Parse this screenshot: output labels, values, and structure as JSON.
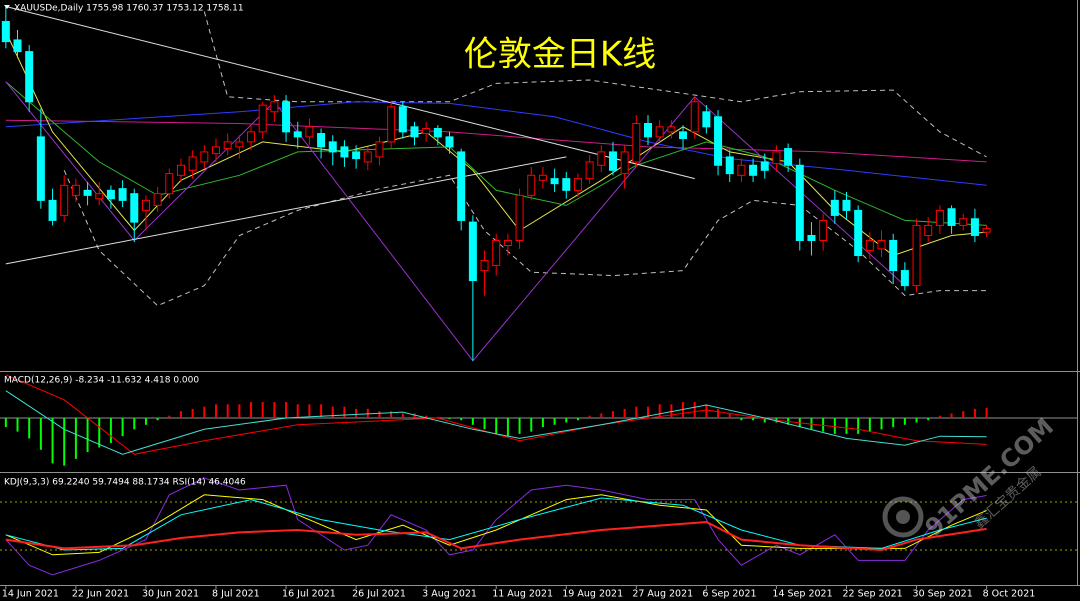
{
  "chart_data": [
    {
      "type": "candlestick",
      "title": "伦敦金日K线",
      "info": "XAUUSDe,Daily  1755.98 1760.37 1753.12 1758.11",
      "up_color": "#ff0000",
      "down_color": "#00ffff",
      "ylim": [
        1673.5,
        1893.7
      ],
      "xlim": [
        -0.5,
        92
      ],
      "xticks": [
        {
          "value": 0,
          "label": "14 Jun 2021"
        },
        {
          "value": 6,
          "label": "22 Jun 2021"
        },
        {
          "value": 12,
          "label": "30 Jun 2021"
        },
        {
          "value": 18,
          "label": "8 Jul 2021"
        },
        {
          "value": 24,
          "label": "16 Jul 2021"
        },
        {
          "value": 30,
          "label": "26 Jul 2021"
        },
        {
          "value": 36,
          "label": "3 Aug 2021"
        },
        {
          "value": 42,
          "label": "11 Aug 2021"
        },
        {
          "value": 48,
          "label": "19 Aug 2021"
        },
        {
          "value": 54,
          "label": "27 Aug 2021"
        },
        {
          "value": 60,
          "label": "6 Sep 2021"
        },
        {
          "value": 66,
          "label": "14 Sep 2021"
        },
        {
          "value": 72,
          "label": "22 Sep 2021"
        },
        {
          "value": 78,
          "label": "30 Sep 2021"
        },
        {
          "value": 84,
          "label": "8 Oct 2021"
        }
      ],
      "candles": [
        [
          1882,
          1891,
          1866,
          1870
        ],
        [
          1871,
          1877,
          1860,
          1864
        ],
        [
          1864,
          1868,
          1828,
          1834
        ],
        [
          1813,
          1830,
          1770,
          1775
        ],
        [
          1775,
          1782,
          1760,
          1763
        ],
        [
          1766,
          1790,
          1762,
          1784
        ],
        [
          1778,
          1788,
          1774,
          1784
        ],
        [
          1781,
          1786,
          1772,
          1778
        ],
        [
          1776,
          1786,
          1772,
          1779
        ],
        [
          1781,
          1784,
          1770,
          1776
        ],
        [
          1782,
          1787,
          1771,
          1775
        ],
        [
          1779,
          1782,
          1750,
          1762
        ],
        [
          1769,
          1778,
          1757,
          1775
        ],
        [
          1772,
          1783,
          1768,
          1779
        ],
        [
          1779,
          1794,
          1776,
          1791
        ],
        [
          1790,
          1800,
          1786,
          1796
        ],
        [
          1793,
          1805,
          1788,
          1801
        ],
        [
          1798,
          1808,
          1794,
          1804
        ],
        [
          1803,
          1812,
          1798,
          1807
        ],
        [
          1806,
          1815,
          1802,
          1810
        ],
        [
          1807,
          1814,
          1800,
          1810
        ],
        [
          1810,
          1820,
          1805,
          1816
        ],
        [
          1816,
          1834,
          1812,
          1832
        ],
        [
          1828,
          1838,
          1822,
          1834
        ],
        [
          1834,
          1838,
          1810,
          1816
        ],
        [
          1816,
          1822,
          1806,
          1813
        ],
        [
          1813,
          1824,
          1808,
          1819
        ],
        [
          1815,
          1818,
          1800,
          1807
        ],
        [
          1810,
          1814,
          1796,
          1804
        ],
        [
          1807,
          1811,
          1795,
          1801
        ],
        [
          1804,
          1808,
          1794,
          1800
        ],
        [
          1798,
          1807,
          1793,
          1804
        ],
        [
          1801,
          1813,
          1796,
          1810
        ],
        [
          1810,
          1834,
          1806,
          1831
        ],
        [
          1831,
          1834,
          1812,
          1816
        ],
        [
          1819,
          1822,
          1808,
          1813
        ],
        [
          1815,
          1822,
          1810,
          1818
        ],
        [
          1818,
          1820,
          1808,
          1813
        ],
        [
          1813,
          1816,
          1803,
          1807
        ],
        [
          1804,
          1806,
          1757,
          1763
        ],
        [
          1762,
          1766,
          1679,
          1727
        ],
        [
          1733,
          1745,
          1718,
          1739
        ],
        [
          1736,
          1755,
          1730,
          1751
        ],
        [
          1748,
          1755,
          1742,
          1751
        ],
        [
          1751,
          1782,
          1746,
          1778
        ],
        [
          1778,
          1795,
          1775,
          1790
        ],
        [
          1787,
          1795,
          1782,
          1790
        ],
        [
          1788,
          1794,
          1780,
          1785
        ],
        [
          1788,
          1792,
          1776,
          1781
        ],
        [
          1781,
          1791,
          1777,
          1788
        ],
        [
          1788,
          1802,
          1785,
          1798
        ],
        [
          1796,
          1808,
          1792,
          1804
        ],
        [
          1804,
          1810,
          1790,
          1793
        ],
        [
          1791,
          1808,
          1782,
          1804
        ],
        [
          1798,
          1826,
          1795,
          1821
        ],
        [
          1821,
          1826,
          1808,
          1813
        ],
        [
          1813,
          1823,
          1810,
          1819
        ],
        [
          1816,
          1823,
          1812,
          1819
        ],
        [
          1816,
          1820,
          1806,
          1812
        ],
        [
          1816,
          1837,
          1812,
          1834
        ],
        [
          1828,
          1832,
          1815,
          1819
        ],
        [
          1825,
          1829,
          1790,
          1796
        ],
        [
          1801,
          1805,
          1786,
          1791
        ],
        [
          1790,
          1800,
          1786,
          1796
        ],
        [
          1796,
          1800,
          1786,
          1790
        ],
        [
          1798,
          1803,
          1788,
          1793
        ],
        [
          1797,
          1808,
          1792,
          1804
        ],
        [
          1806,
          1809,
          1792,
          1796
        ],
        [
          1796,
          1800,
          1745,
          1751
        ],
        [
          1754,
          1762,
          1742,
          1751
        ],
        [
          1751,
          1767,
          1745,
          1763
        ],
        [
          1775,
          1781,
          1761,
          1766
        ],
        [
          1775,
          1780,
          1764,
          1769
        ],
        [
          1769,
          1772,
          1738,
          1742
        ],
        [
          1745,
          1756,
          1740,
          1751
        ],
        [
          1746,
          1757,
          1741,
          1751
        ],
        [
          1751,
          1755,
          1725,
          1733
        ],
        [
          1733,
          1738,
          1721,
          1724
        ],
        [
          1724,
          1764,
          1720,
          1760
        ],
        [
          1754,
          1765,
          1750,
          1760
        ],
        [
          1760,
          1772,
          1755,
          1769
        ],
        [
          1770,
          1772,
          1755,
          1760
        ],
        [
          1760,
          1767,
          1757,
          1764
        ],
        [
          1764,
          1770,
          1750,
          1754
        ],
        [
          1755.98,
          1760.37,
          1753.12,
          1758.11
        ]
      ],
      "series": [
        {
          "color": "#c0c0c0",
          "dash": true,
          "x": [
            17,
            19,
            25,
            38,
            42,
            50,
            58,
            63,
            68,
            76,
            80,
            84
          ],
          "values": [
            1888,
            1837,
            1834,
            1834,
            1845,
            1847,
            1839,
            1834,
            1840,
            1841,
            1816,
            1801
          ]
        },
        {
          "color": "#c0c0c0",
          "dash": true,
          "x": [
            5,
            8,
            13,
            17,
            20,
            25,
            32,
            38,
            41,
            45,
            52,
            58,
            61,
            64,
            68,
            73,
            77,
            80,
            84
          ],
          "values": [
            1793,
            1745,
            1712,
            1724,
            1754,
            1769,
            1782,
            1790,
            1757,
            1732,
            1730,
            1733,
            1763,
            1775,
            1772,
            1745,
            1718,
            1721,
            1721
          ]
        },
        {
          "color": "#2f3cff",
          "x": [
            0,
            20,
            30,
            38,
            47,
            55,
            62,
            72,
            84
          ],
          "values": [
            1819,
            1828,
            1834,
            1833,
            1825,
            1810,
            1800,
            1793,
            1784
          ]
        },
        {
          "color": "#d01a8a",
          "x": [
            0,
            20,
            38,
            55,
            70,
            84
          ],
          "values": [
            1823,
            1821,
            1816,
            1807,
            1804,
            1798
          ]
        },
        {
          "color": "#e6e64a",
          "x": [
            0,
            4,
            11,
            15,
            22,
            29,
            36,
            40,
            44,
            51,
            58,
            62,
            67,
            71,
            76,
            81,
            84
          ],
          "values": [
            1876,
            1816,
            1757,
            1787,
            1810,
            1804,
            1816,
            1793,
            1757,
            1787,
            1819,
            1804,
            1798,
            1769,
            1742,
            1754,
            1756
          ]
        },
        {
          "color": "#2eb82e",
          "x": [
            0,
            8,
            13,
            20,
            25,
            38,
            42,
            48,
            54,
            60,
            65,
            71,
            77,
            84
          ],
          "values": [
            1846,
            1798,
            1778,
            1790,
            1804,
            1807,
            1781,
            1772,
            1796,
            1810,
            1801,
            1781,
            1763,
            1760
          ]
        },
        {
          "color": "#9932cc",
          "x": [
            0,
            11,
            23,
            40,
            59,
            77
          ],
          "values": [
            1846,
            1751,
            1834,
            1679,
            1837,
            1724
          ]
        },
        {
          "color": "#e0e0e0",
          "x": [
            0,
            48
          ],
          "values": [
            1737,
            1801
          ]
        },
        {
          "color": "#e0e0e0",
          "x": [
            0,
            59
          ],
          "values": [
            1891,
            1788
          ]
        }
      ]
    },
    {
      "type": "macd",
      "label": "MACD(12,26,9) -8.234 -11.632 4.418 0.000",
      "ylim": [
        -22.9,
        19.8
      ],
      "up_color": "#ff0000",
      "down_color": "#00ff00",
      "histogram": [
        -4,
        -6,
        -9,
        -14,
        -20,
        -21,
        -18,
        -15,
        -13,
        -11,
        -8,
        -5,
        -3,
        -1,
        1,
        3,
        4,
        5,
        6,
        6,
        6,
        7,
        7,
        7,
        7,
        6,
        6,
        6,
        5,
        5,
        4,
        4,
        3,
        3,
        2,
        2,
        1,
        0.5,
        -0.5,
        -1,
        -3,
        -5,
        -7,
        -8,
        -7,
        -6,
        -4,
        -3,
        -2,
        -1,
        1,
        2,
        3,
        4,
        5,
        5,
        6,
        6,
        7,
        7,
        6,
        4,
        2,
        -1,
        -1,
        -2,
        -2,
        -3,
        -4,
        -5,
        -6,
        -7,
        -7,
        -7,
        -6,
        -5,
        -4,
        -3,
        -2,
        -1,
        1,
        2,
        3,
        4,
        4.418
      ],
      "series": [
        {
          "color": "#ff0000",
          "x": [
            0,
            5,
            11,
            17,
            25,
            37,
            44,
            51,
            60,
            66,
            73,
            78,
            84
          ],
          "values": [
            19,
            8,
            -16,
            -10,
            -3,
            0,
            -10,
            -3,
            3.5,
            -1,
            -5,
            -10,
            -11.632
          ]
        },
        {
          "color": "#40e0d0",
          "x": [
            0,
            5,
            10,
            17,
            24,
            34,
            40,
            44,
            51,
            60,
            65,
            72,
            77,
            80,
            84
          ],
          "values": [
            12,
            -5,
            -16,
            -5,
            0,
            2.6,
            -5,
            -9,
            -3,
            5.7,
            0,
            -9,
            -12,
            -8,
            -8.234
          ]
        }
      ]
    },
    {
      "type": "line",
      "label": "KDJ(9,3,3) 69.2240 59.7494 88.1734  RSI(14) 46.4046",
      "ylim": [
        -23.75,
        113.75
      ],
      "levels": [
        20,
        80
      ],
      "level_color": "#a0a000",
      "series": [
        {
          "color": "#8a2be2",
          "x": [
            0,
            2,
            4,
            8,
            12,
            14,
            17,
            20,
            24,
            25,
            29,
            31,
            33,
            36,
            38,
            40,
            42,
            45,
            48,
            51,
            55,
            59,
            61,
            63,
            66,
            68,
            71,
            73,
            77,
            79,
            82,
            84
          ],
          "values": [
            33,
            1,
            -11,
            7,
            33,
            89,
            110,
            95,
            101,
            58,
            20,
            26,
            64,
            45,
            14,
            20,
            58,
            95,
            101,
            95,
            83,
            83,
            33,
            1,
            26,
            14,
            39,
            7,
            7,
            45,
            83,
            88.1734
          ]
        },
        {
          "color": "#ffff00",
          "x": [
            0,
            4,
            8,
            12,
            17,
            22,
            25,
            30,
            34,
            38,
            42,
            48,
            51,
            56,
            60,
            63,
            68,
            73,
            77,
            81,
            84
          ],
          "values": [
            39,
            14,
            17,
            45,
            89,
            83,
            64,
            33,
            51,
            26,
            45,
            83,
            89,
            76,
            70,
            26,
            22,
            22,
            22,
            51,
            69.224
          ]
        },
        {
          "color": "#00ffff",
          "x": [
            0,
            5,
            10,
            15,
            21,
            27,
            32,
            38,
            44,
            51,
            58,
            63,
            68,
            75,
            80,
            84
          ],
          "values": [
            39,
            20,
            22,
            64,
            83,
            58,
            45,
            33,
            58,
            85,
            76,
            45,
            26,
            22,
            45,
            59.7494
          ]
        },
        {
          "color": "#ff2020",
          "width": 2,
          "x": [
            0,
            5,
            11,
            15,
            20,
            25,
            30,
            36,
            39,
            44,
            51,
            60,
            63,
            68,
            75,
            78,
            84
          ],
          "values": [
            33,
            22,
            26,
            35,
            42,
            45,
            39,
            42,
            22,
            33,
            45,
            55,
            33,
            26,
            20,
            33,
            46.4046
          ]
        }
      ]
    }
  ],
  "watermark": {
    "site": "91PME.COM",
    "name": "鑫汇宝贵金属"
  }
}
